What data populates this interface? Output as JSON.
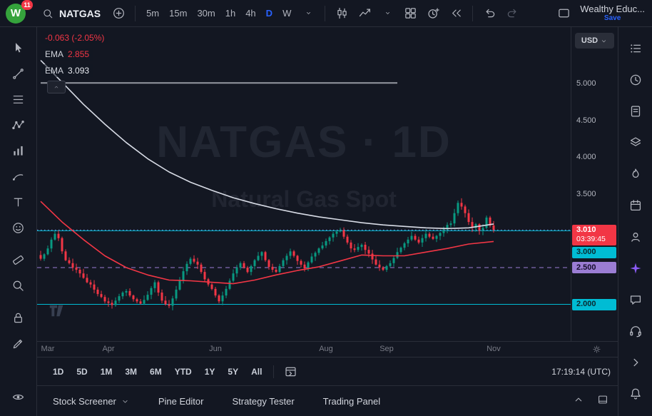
{
  "top_bar": {
    "logo_letter": "W",
    "logo_badge": "11",
    "symbol": "NATGAS",
    "timeframes": [
      "5m",
      "15m",
      "30m",
      "1h",
      "4h",
      "D",
      "W"
    ],
    "active_timeframe": "D",
    "account_name": "Wealthy Educ...",
    "save_label": "Save"
  },
  "left_toolbar": {
    "tools": [
      {
        "name": "cursor-tool",
        "icon": "cursor"
      },
      {
        "name": "trend-line-tool",
        "icon": "trend"
      },
      {
        "name": "fib-retracement-tool",
        "icon": "fib"
      },
      {
        "name": "pattern-tool",
        "icon": "pattern"
      },
      {
        "name": "forecast-tool",
        "icon": "forecast"
      },
      {
        "name": "brush-tool",
        "icon": "brush"
      },
      {
        "name": "text-tool",
        "icon": "text"
      },
      {
        "name": "emoji-tool",
        "icon": "emoji"
      },
      {
        "name": "measure-tool",
        "icon": "measure",
        "gap": "sm"
      },
      {
        "name": "zoom-tool",
        "icon": "zoom"
      },
      {
        "name": "lock-all-drawings-tool",
        "icon": "lock",
        "gap": "sm"
      },
      {
        "name": "edit-drawings-tool",
        "icon": "pencil"
      },
      {
        "name": "hide-drawings-tool",
        "icon": "eye",
        "gap": "lg"
      }
    ]
  },
  "right_sidebar": {
    "items": [
      {
        "name": "watchlist",
        "icon": "watchlist"
      },
      {
        "name": "alerts",
        "icon": "clock"
      },
      {
        "name": "news",
        "icon": "notes"
      },
      {
        "name": "object-tree",
        "icon": "layers"
      },
      {
        "name": "hotlists",
        "icon": "flame"
      },
      {
        "name": "calendar",
        "icon": "calendar"
      },
      {
        "name": "ideas",
        "icon": "person"
      },
      {
        "name": "ai-assistant",
        "icon": "sparkle"
      },
      {
        "name": "chat",
        "icon": "chat"
      },
      {
        "name": "support",
        "icon": "headset"
      },
      {
        "name": "expand-panel",
        "icon": "chevR"
      },
      {
        "name": "notifications",
        "icon": "bell"
      }
    ]
  },
  "legend": {
    "change": "-0.063 (-2.05%)",
    "indicators": [
      {
        "name": "EMA",
        "value": "2.855"
      },
      {
        "name": "EMA",
        "value": "3.093"
      }
    ]
  },
  "watermark": {
    "line1": "NATGAS · 1D",
    "line2": "Natural Gas Spot"
  },
  "price_scale": {
    "currency": "USD",
    "ticks": [
      {
        "label": "5.000",
        "price": 5.0
      },
      {
        "label": "4.500",
        "price": 4.5
      },
      {
        "label": "4.000",
        "price": 4.0
      },
      {
        "label": "3.500",
        "price": 3.5
      }
    ],
    "badges": [
      {
        "label": "3.010",
        "sub": "03:39:45",
        "price": 3.01,
        "bg": "#f23645",
        "fg": "#ffffff"
      },
      {
        "label": "3.000",
        "price": 3.0,
        "bg": "#00bcd4",
        "fg": "#0a2a30"
      },
      {
        "label": "2.500",
        "price": 2.5,
        "bg": "#9b7dd4",
        "fg": "#160e2e"
      },
      {
        "label": "2.000",
        "price": 2.0,
        "bg": "#00bcd4",
        "fg": "#0a2a30"
      }
    ]
  },
  "range_bar": {
    "ranges": [
      "1D",
      "5D",
      "1M",
      "3M",
      "6M",
      "YTD",
      "1Y",
      "5Y",
      "All"
    ],
    "clock": "17:19:14 (UTC)"
  },
  "bottom_panel": {
    "tabs": [
      {
        "label": "Stock Screener",
        "caret": true
      },
      {
        "label": "Pine Editor",
        "caret": false
      },
      {
        "label": "Strategy Tester",
        "caret": false
      },
      {
        "label": "Trading Panel",
        "caret": false
      }
    ]
  },
  "chart_data": {
    "type": "candlestick",
    "symbol": "NATGAS",
    "interval": "1D",
    "last_price": 3.01,
    "change": -0.063,
    "change_pct": -2.05,
    "ylim": {
      "top": 5.77,
      "bottom": 1.5
    },
    "up_color": "#089981",
    "down_color": "#f23645",
    "closes": [
      2.62,
      2.68,
      2.76,
      2.88,
      2.96,
      2.9,
      2.72,
      2.6,
      2.56,
      2.5,
      2.47,
      2.42,
      2.36,
      2.3,
      2.27,
      2.2,
      2.14,
      2.1,
      2.04,
      2.02,
      1.99,
      2.05,
      2.11,
      2.16,
      2.18,
      2.12,
      2.07,
      2.04,
      2.01,
      2.06,
      2.13,
      2.22,
      2.3,
      2.16,
      2.05,
      2.0,
      1.98,
      2.08,
      2.2,
      2.33,
      2.45,
      2.55,
      2.62,
      2.58,
      2.54,
      2.44,
      2.34,
      2.27,
      2.21,
      2.12,
      2.04,
      2.12,
      2.21,
      2.32,
      2.42,
      2.5,
      2.56,
      2.5,
      2.44,
      2.52,
      2.6,
      2.66,
      2.71,
      2.6,
      2.51,
      2.47,
      2.44,
      2.52,
      2.6,
      2.66,
      2.72,
      2.66,
      2.59,
      2.54,
      2.49,
      2.57,
      2.65,
      2.7,
      2.76,
      2.8,
      2.86,
      2.91,
      2.96,
      2.99,
      3.01,
      2.92,
      2.84,
      2.76,
      2.74,
      2.78,
      2.81,
      2.74,
      2.69,
      2.61,
      2.54,
      2.5,
      2.47,
      2.52,
      2.56,
      2.63,
      2.71,
      2.77,
      2.83,
      2.88,
      2.93,
      2.88,
      2.84,
      2.9,
      2.96,
      2.92,
      2.89,
      2.93,
      2.97,
      3.02,
      3.08,
      3.1,
      3.24,
      3.38,
      3.33,
      3.24,
      3.12,
      3.04,
      3.09,
      3.0,
      3.04,
      3.18,
      3.073,
      3.01
    ],
    "ema_fast": {
      "label": "EMA",
      "value": 2.855,
      "color": "#f23645",
      "anchors": [
        [
          0,
          3.4
        ],
        [
          6,
          3.12
        ],
        [
          12,
          2.88
        ],
        [
          18,
          2.66
        ],
        [
          24,
          2.5
        ],
        [
          30,
          2.4
        ],
        [
          36,
          2.33
        ],
        [
          42,
          2.32
        ],
        [
          48,
          2.3
        ],
        [
          54,
          2.28
        ],
        [
          60,
          2.33
        ],
        [
          66,
          2.4
        ],
        [
          72,
          2.46
        ],
        [
          78,
          2.51
        ],
        [
          84,
          2.59
        ],
        [
          90,
          2.67
        ],
        [
          96,
          2.66
        ],
        [
          102,
          2.66
        ],
        [
          108,
          2.71
        ],
        [
          114,
          2.76
        ],
        [
          120,
          2.82
        ],
        [
          127,
          2.855
        ]
      ]
    },
    "ema_slow": {
      "label": "EMA",
      "value": 3.093,
      "color": "#d8dce6",
      "anchors": [
        [
          0,
          5.32
        ],
        [
          6,
          5.02
        ],
        [
          12,
          4.72
        ],
        [
          18,
          4.45
        ],
        [
          24,
          4.2
        ],
        [
          30,
          3.98
        ],
        [
          36,
          3.8
        ],
        [
          42,
          3.66
        ],
        [
          48,
          3.55
        ],
        [
          54,
          3.45
        ],
        [
          60,
          3.37
        ],
        [
          66,
          3.3
        ],
        [
          72,
          3.24
        ],
        [
          78,
          3.19
        ],
        [
          84,
          3.15
        ],
        [
          90,
          3.11
        ],
        [
          96,
          3.08
        ],
        [
          102,
          3.06
        ],
        [
          108,
          3.04
        ],
        [
          114,
          3.03
        ],
        [
          120,
          3.04
        ],
        [
          127,
          3.093
        ]
      ]
    },
    "levels": [
      {
        "price": 5.01,
        "color": "#9598a1",
        "style": "solid",
        "width": 2,
        "from_index": 0,
        "to_index": 100
      },
      {
        "price": 3.01,
        "color": "#7ba1f7",
        "style": "dotted",
        "width": 1
      },
      {
        "price": 3.0,
        "color": "#00bcd4",
        "style": "solid",
        "width": 1
      },
      {
        "price": 2.5,
        "color": "#9b7dd4",
        "style": "dashed",
        "width": 1
      },
      {
        "price": 2.0,
        "color": "#00bcd4",
        "style": "solid",
        "width": 1
      }
    ],
    "months": [
      [
        "Mar",
        2
      ],
      [
        "Apr",
        19
      ],
      [
        "Jun",
        49
      ],
      [
        "Aug",
        80
      ],
      [
        "Sep",
        97
      ],
      [
        "Nov",
        127
      ]
    ]
  }
}
